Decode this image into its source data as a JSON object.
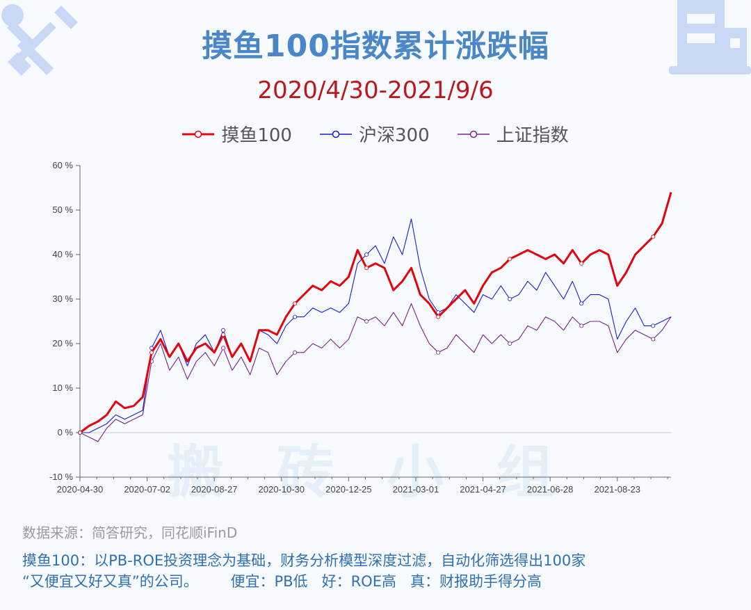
{
  "header": {
    "title": "摸鱼100指数累计涨跌幅",
    "subtitle": "2020/4/30-2021/9/6"
  },
  "watermark": "搬砖小组",
  "colors": {
    "moyu": "#e8000b",
    "hs300": "#1a1adb",
    "shanghai": "#7a1f8c",
    "title": "#4a86c8",
    "subtitle": "#c0151b"
  },
  "footer": {
    "source": "数据来源：简答研究，同花顺iFinD",
    "note_line1": "摸鱼100：以PB-ROE投资理念为基础，财务分析模型深度过滤，自动化筛选得出100家",
    "note_line2": "“又便宜又好又真”的公司。       便宜：PB低   好：ROE高   真：财报助手得分高"
  },
  "chart_data": {
    "type": "line",
    "xlabel": "",
    "ylabel": "",
    "ylim": [
      -10,
      60
    ],
    "yticks": [
      -10,
      0,
      10,
      20,
      30,
      40,
      50,
      60
    ],
    "ytick_labels": [
      "-10 %",
      "0 %",
      "10 %",
      "20 %",
      "30 %",
      "40 %",
      "50 %",
      "60 %"
    ],
    "xtick_labels": [
      "2020-04-30",
      "2020-07-02",
      "2020-08-27",
      "2020-10-30",
      "2020-12-25",
      "2021-03-01",
      "2021-04-27",
      "2021-06-28",
      "2021-08-23"
    ],
    "legend_position": "top-center",
    "grid": false,
    "series": [
      {
        "name": "摸鱼100",
        "key": "moyu",
        "values": [
          0,
          1.5,
          2.5,
          4,
          7,
          5.5,
          6,
          8,
          18,
          21,
          17,
          20,
          16,
          19,
          20,
          18,
          22,
          17,
          20,
          16,
          23,
          23,
          22,
          26,
          29,
          31,
          33,
          32,
          34,
          33,
          35,
          41,
          37,
          38,
          37,
          32,
          34,
          37,
          31,
          29,
          26,
          28,
          30,
          32,
          29,
          33,
          36,
          37,
          39,
          40,
          41,
          40,
          39,
          40,
          38,
          41,
          38,
          40,
          41,
          40,
          33,
          36,
          40,
          42,
          44,
          47,
          54
        ]
      },
      {
        "name": "沪深300",
        "key": "hs300",
        "values": [
          0,
          0,
          1,
          2,
          4,
          3,
          4,
          5,
          19,
          23,
          17,
          20,
          15,
          20,
          22,
          18,
          23,
          17,
          20,
          16,
          23,
          22,
          20,
          24,
          26,
          26,
          28,
          27,
          28,
          27,
          29,
          38,
          40,
          42,
          38,
          44,
          40,
          48,
          37,
          30,
          27,
          28,
          31,
          29,
          27,
          31,
          30,
          33,
          30,
          31,
          34,
          32,
          36,
          33,
          30,
          34,
          29,
          31,
          31,
          30,
          21,
          25,
          28,
          24,
          24,
          25,
          26
        ]
      },
      {
        "name": "上证指数",
        "key": "shanghai",
        "values": [
          0,
          -1,
          -2,
          1,
          3,
          2,
          3,
          4,
          16,
          20,
          14,
          17,
          12,
          16,
          18,
          15,
          19,
          14,
          17,
          13,
          19,
          18,
          13,
          16,
          18,
          18,
          20,
          19,
          21,
          19,
          21,
          26,
          25,
          26,
          24,
          27,
          24,
          29,
          24,
          20,
          18,
          19,
          22,
          20,
          18,
          22,
          20,
          22,
          20,
          21,
          24,
          23,
          26,
          25,
          23,
          26,
          24,
          25,
          25,
          24,
          18,
          21,
          23,
          22,
          21,
          23,
          26
        ]
      }
    ]
  }
}
